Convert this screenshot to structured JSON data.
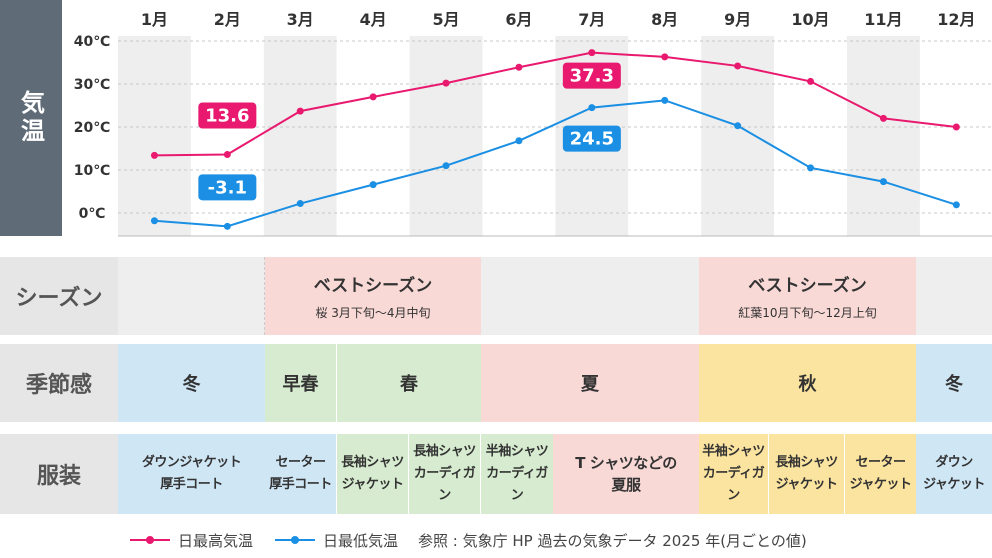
{
  "side_label": "気温",
  "chart_data": {
    "type": "line",
    "categories": [
      "1月",
      "2月",
      "3月",
      "4月",
      "5月",
      "6月",
      "7月",
      "8月",
      "9月",
      "10月",
      "11月",
      "12月"
    ],
    "series": [
      {
        "name": "日最高気温",
        "color": "#e8196e",
        "values": [
          13.4,
          13.6,
          23.7,
          27.0,
          30.2,
          33.9,
          37.3,
          36.3,
          34.2,
          30.6,
          22.0,
          20.0
        ]
      },
      {
        "name": "日最低気温",
        "color": "#1a8fe3",
        "values": [
          -1.8,
          -3.1,
          2.2,
          6.6,
          11.0,
          16.8,
          24.5,
          26.2,
          20.3,
          10.5,
          7.3,
          1.9
        ]
      }
    ],
    "yticks": [
      "40℃",
      "30℃",
      "20℃",
      "10℃",
      "0℃"
    ],
    "ytick_values": [
      40,
      30,
      20,
      10,
      0
    ],
    "ylim": [
      -6,
      45
    ],
    "annotations": [
      {
        "series": 0,
        "index": 1,
        "label": "13.6"
      },
      {
        "series": 1,
        "index": 1,
        "label": "-3.1"
      },
      {
        "series": 0,
        "index": 6,
        "label": "37.3"
      },
      {
        "series": 1,
        "index": 6,
        "label": "24.5"
      }
    ],
    "shaded_months": [
      0,
      2,
      4,
      6,
      8,
      10
    ],
    "legend_note": "参照 : 気象庁 HP 過去の気象データ 2025 年(月ごとの値)"
  },
  "rows": {
    "season": {
      "label": "シーズン",
      "cells": [
        {
          "title": "ベストシーズン",
          "sub": "桜 3月下旬〜4月中旬"
        },
        {
          "title": "ベストシーズン",
          "sub": "紅葉10月下旬〜12月上旬"
        }
      ]
    },
    "feel": {
      "label": "季節感",
      "cells": [
        "冬",
        "早春",
        "春",
        "夏",
        "秋",
        "冬"
      ]
    },
    "clothes": {
      "label": "服装",
      "cells": [
        [
          "ダウンジャケット",
          "厚手コート"
        ],
        [
          "セーター",
          "厚手コート"
        ],
        [
          "長袖シャツ",
          "ジャケット"
        ],
        [
          "長袖シャツ",
          "カーディガン"
        ],
        [
          "半袖シャツ",
          "カーディガン"
        ],
        [
          "T シャツなどの",
          "夏服"
        ],
        [
          "半袖シャツ",
          "カーディガン"
        ],
        [
          "長袖シャツ",
          "ジャケット"
        ],
        [
          "セーター",
          "ジャケット"
        ],
        [
          "ダウン",
          "ジャケット"
        ]
      ]
    }
  },
  "colors": {
    "winter": "#cfe6f5",
    "spring": "#d6ebcf",
    "summer": "#f8d9d6",
    "autumn": "#fbe3a0",
    "best": "#f8d9d6",
    "base": "#eeeeee",
    "shade": "#eeeeee"
  }
}
